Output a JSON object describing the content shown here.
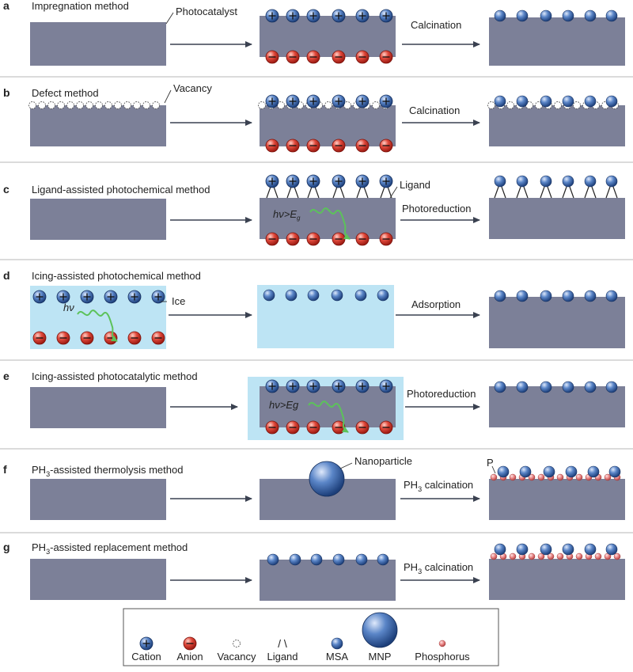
{
  "colors": {
    "slab": "#7c8098",
    "ice": "#bde4f4",
    "cation": "#2f5d9e",
    "anion": "#d8392c",
    "msa": "#2f5d9e",
    "phosphorus": "#e87a7a",
    "arrow": "#3a4150",
    "wave": "#5cc25a",
    "divider": "#b7b7b7"
  },
  "panels": [
    {
      "id": "a",
      "letter": "a",
      "title": "Impregnation method",
      "callout": "Photocatalyst",
      "step": "Calcination"
    },
    {
      "id": "b",
      "letter": "b",
      "title": "Defect method",
      "callout": "Vacancy",
      "step": "Calcination"
    },
    {
      "id": "c",
      "letter": "c",
      "title": "Ligand-assisted photochemical method",
      "callout": "Ligand",
      "step": "Photoreduction",
      "energy": "hν>E",
      "energy_sub": "g"
    },
    {
      "id": "d",
      "letter": "d",
      "title": "Icing-assisted photochemical method",
      "callout": "Ice",
      "step": "Adsorption",
      "energy": "hν"
    },
    {
      "id": "e",
      "letter": "e",
      "title": "Icing-assisted photocatalytic method",
      "step": "Photoreduction",
      "energy": "hν>Eg"
    },
    {
      "id": "f",
      "letter": "f",
      "title_pre": "PH",
      "title_sub": "3",
      "title_post": "-assisted thermolysis method",
      "callout": "Nanoparticle",
      "callout2": "P",
      "step_pre": "PH",
      "step_sub": "3",
      "step_post": " calcination"
    },
    {
      "id": "g",
      "letter": "g",
      "title_pre": "PH",
      "title_sub": "3",
      "title_post": "-assisted replacement method",
      "step_pre": "PH",
      "step_sub": "3",
      "step_post": " calcination"
    }
  ],
  "legend": [
    {
      "key": "cation",
      "label": "Cation"
    },
    {
      "key": "anion",
      "label": "Anion"
    },
    {
      "key": "vacancy",
      "label": "Vacancy"
    },
    {
      "key": "ligand",
      "label": "Ligand",
      "glyph": "/ \\"
    },
    {
      "key": "msa",
      "label": "MSA"
    },
    {
      "key": "mnp",
      "label": "MNP"
    },
    {
      "key": "phosphorus",
      "label": "Phosphorus"
    }
  ]
}
